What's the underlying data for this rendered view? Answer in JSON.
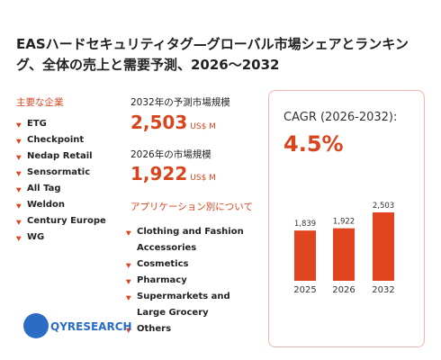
{
  "header": {
    "title": "EASハードセキュリティタグ—グローバル市場シェアとランキング、全体の売上と需要予測、2026～2032"
  },
  "companies": {
    "title": "主要な企業",
    "items": [
      "ETG",
      "Checkpoint",
      "Nedap Retail",
      "Sensormatic",
      "All Tag",
      "Weldon",
      "Century Europe",
      "WG"
    ]
  },
  "market": {
    "forecast_label": "2032年の予測市場規模",
    "forecast_value": "2,503",
    "forecast_unit": "US$ M",
    "current_label": "2026年の市場規模",
    "current_value": "1,922",
    "current_unit": "US$ M"
  },
  "applications": {
    "title": "アプリケーション別について",
    "items": [
      "Clothing and Fashion Accessories",
      "Cosmetics",
      "Pharmacy",
      "Supermarkets and Large Grocery",
      "Others"
    ]
  },
  "chart_data": {
    "type": "bar",
    "title": "CAGR (2026-2032):",
    "subtitle": "4.5%",
    "categories": [
      "2025",
      "2026",
      "2032"
    ],
    "values": [
      1839,
      1922,
      2503
    ],
    "value_labels": [
      "1,839",
      "1,922",
      "2,503"
    ],
    "color": "#e0451f"
  },
  "logo": {
    "text": "QYRESEARCH"
  }
}
